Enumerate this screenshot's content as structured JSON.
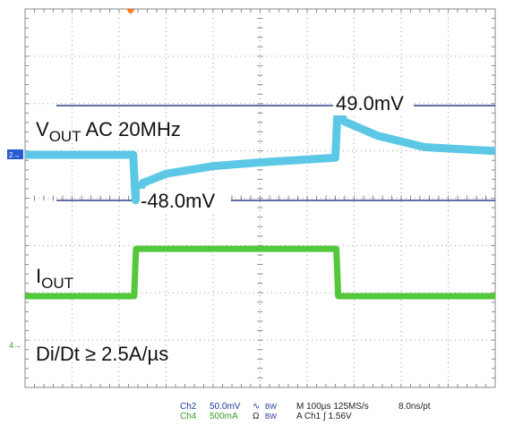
{
  "chart_data": {
    "type": "line",
    "title": "",
    "grid": true,
    "divisions": {
      "x": 10,
      "y": 8
    },
    "traces": [
      {
        "name": "Ch2",
        "label_main": "V",
        "label_sub": "OUT",
        "label_rest": " AC 20MHz",
        "color": "#5cc8e6",
        "units": "mV",
        "x_us": [
          0,
          230,
          235,
          250,
          300,
          400,
          500,
          600,
          660,
          665,
          680,
          750,
          850,
          1000
        ],
        "y": [
          0,
          0,
          -48,
          -30,
          -20,
          -12,
          -8,
          -5,
          -3,
          49,
          35,
          20,
          8,
          4
        ]
      },
      {
        "name": "Ch4",
        "label_main": "I",
        "label_sub": "OUT",
        "label_rest": "",
        "color": "#52c83a",
        "units": "A",
        "x_us": [
          0,
          232,
          236,
          662,
          666,
          1000
        ],
        "y": [
          0,
          0,
          0.5,
          0.5,
          0,
          0
        ]
      }
    ],
    "annotations": {
      "upper_marker": "49.0mV",
      "lower_marker": "-48.0mV",
      "slew": "Di/Dt ≥ 2.5A/µs"
    }
  },
  "scope_readout": {
    "ch2_name": "Ch2",
    "ch2_scale": "50.0mV",
    "ch2_coupling": "∿",
    "ch2_bw": "BW",
    "ch4_name": "Ch4",
    "ch4_scale": "500mA",
    "ch4_coupling": "Ω",
    "ch4_bw": "BW",
    "timebase": "M 100µs 125MS/s",
    "resolution": "8.0ns/pt",
    "trigger": "A  Ch1  ∫  1.56V"
  }
}
